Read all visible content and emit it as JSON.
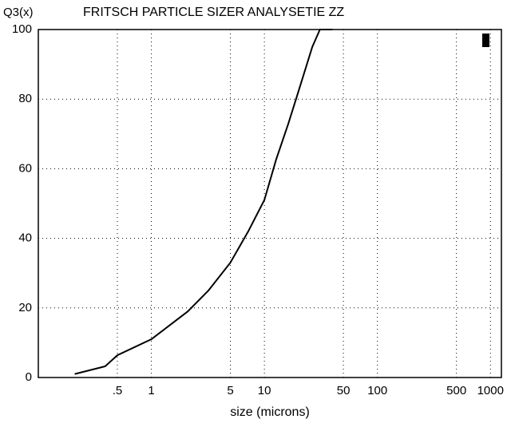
{
  "chart_data": {
    "type": "line",
    "title": "FRITSCH PARTICLE SIZER ANALYSETIE ZZ",
    "y_label": "Q3(x)",
    "x_label": "size (microns)",
    "x_scale": "log",
    "grid": true,
    "xlim": [
      0.1,
      1250
    ],
    "ylim": [
      0,
      100
    ],
    "xticks": [
      {
        "value": 0.5,
        "label": ".5"
      },
      1,
      5,
      10,
      50,
      100,
      500,
      1000
    ],
    "yticks": [
      0,
      20,
      40,
      60,
      80,
      100
    ],
    "series": [
      {
        "color": "#000000",
        "x": [
          0.21,
          0.39,
          0.5,
          1,
          2.1,
          3.2,
          5,
          7.2,
          10,
          12.7,
          16.3,
          20.8,
          26.5,
          31,
          40
        ],
        "values": [
          1,
          3.2,
          6.4,
          11,
          19,
          25,
          33,
          42,
          51,
          62.6,
          73,
          84,
          95,
          100,
          100
        ]
      }
    ]
  }
}
